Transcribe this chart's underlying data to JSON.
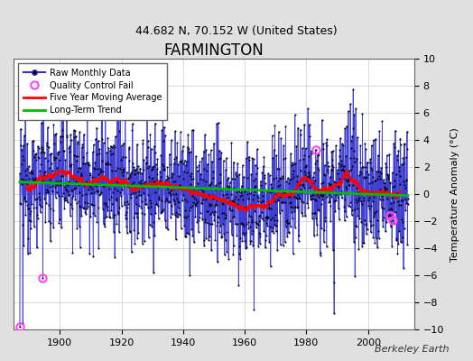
{
  "title": "FARMINGTON",
  "subtitle": "44.682 N, 70.152 W (United States)",
  "ylabel": "Temperature Anomaly (°C)",
  "xlim": [
    1885,
    2015
  ],
  "ylim": [
    -10,
    10
  ],
  "yticks": [
    -10,
    -8,
    -6,
    -4,
    -2,
    0,
    2,
    4,
    6,
    8,
    10
  ],
  "xticks": [
    1900,
    1920,
    1940,
    1960,
    1980,
    2000
  ],
  "background_color": "#e0e0e0",
  "plot_bg_color": "#ffffff",
  "line_color": "#3333cc",
  "bar_color": "#8888ff",
  "marker_color": "#000000",
  "moving_avg_color": "#ff0000",
  "trend_color": "#00bb00",
  "qc_fail_color": "#ff44ff",
  "watermark": "Berkeley Earth",
  "start_year": 1887,
  "end_year": 2013,
  "seed": 12345
}
